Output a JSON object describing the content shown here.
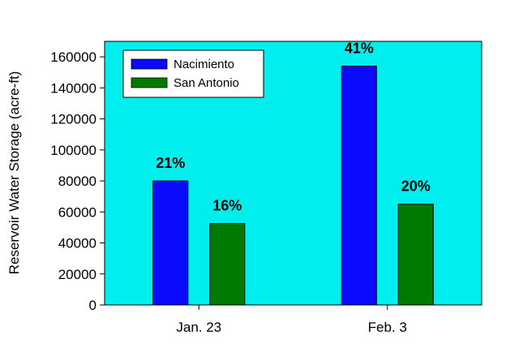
{
  "chart_data": {
    "type": "bar",
    "categories": [
      "Jan. 23",
      "Feb. 3"
    ],
    "series": [
      {
        "name": "Nacimiento",
        "color": "#0a0aff",
        "values": [
          80000,
          154000
        ],
        "labels": [
          "21%",
          "41%"
        ]
      },
      {
        "name": "San Antonio",
        "color": "#007a00",
        "values": [
          52500,
          65000
        ],
        "labels": [
          "16%",
          "20%"
        ]
      }
    ],
    "ylabel": "Reservoir Water Storage (acre-ft)",
    "xlabel": "",
    "ylim": [
      0,
      170000
    ],
    "yticks": [
      0,
      20000,
      40000,
      60000,
      80000,
      100000,
      120000,
      140000,
      160000
    ],
    "ytick_labels": [
      "0",
      "20000",
      "40000",
      "60000",
      "80000",
      "100000",
      "120000",
      "140000",
      "160000"
    ],
    "plot_background": "#00eeee",
    "grid": false,
    "legend_position": "top-left"
  }
}
